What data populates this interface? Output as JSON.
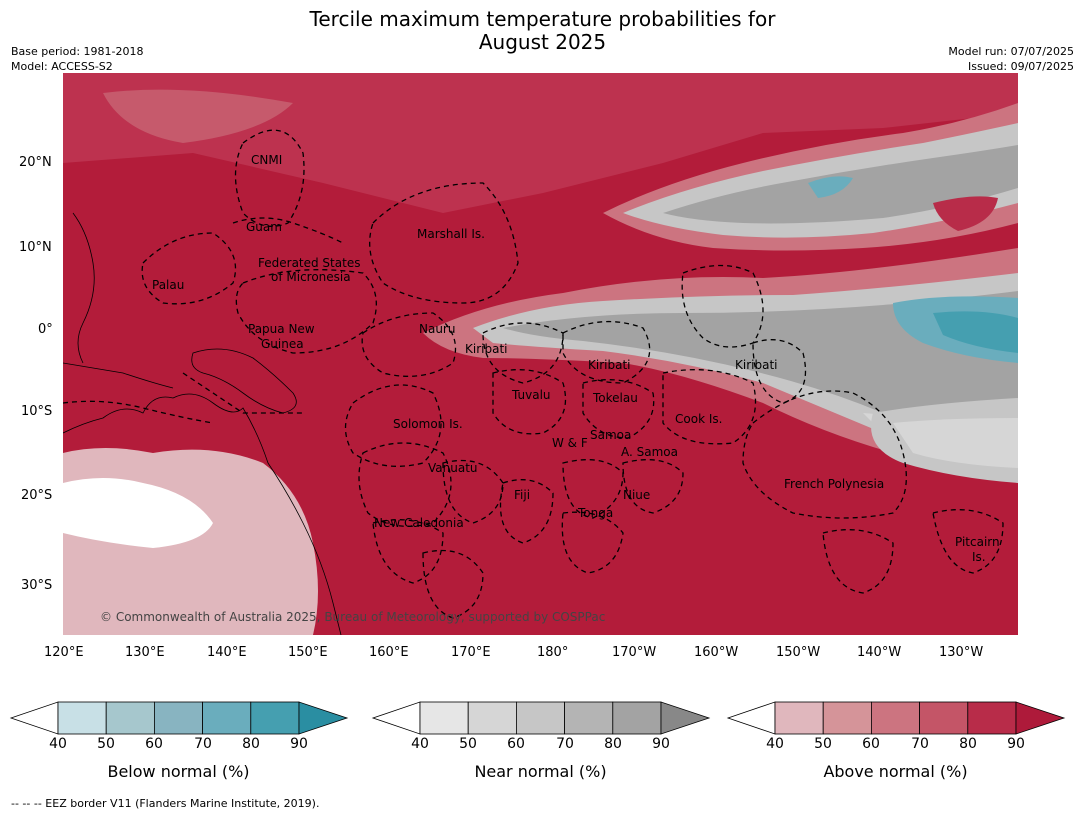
{
  "title_line1": "Tercile maximum temperature probabilities for",
  "title_line2": "August 2025",
  "base_period": "Base period: 1981-2018",
  "model": "Model: ACCESS-S2",
  "model_run": "Model run: 07/07/2025",
  "issued": "Issued: 09/07/2025",
  "copyright": "© Commonwealth of Australia 2025, Bureau of Meteorology, supported by COSPPac",
  "lat_ticks": [
    "20°N",
    "10°N",
    "0°",
    "10°S",
    "20°S",
    "30°S"
  ],
  "lon_ticks": [
    "120°E",
    "130°E",
    "140°E",
    "150°E",
    "160°E",
    "170°E",
    "180°",
    "170°W",
    "160°W",
    "150°W",
    "140°W",
    "130°W"
  ],
  "regions": {
    "cnmi": "CNMI",
    "guam": "Guam",
    "marshall": "Marshall Is.",
    "fsm1": "Federated States",
    "fsm2": "of Micronesia",
    "palau": "Palau",
    "png1": "Papua New",
    "png2": "Guinea",
    "nauru": "Nauru",
    "kiribati_w": "Kiribati",
    "kiribati_c": "Kiribati",
    "kiribati_e": "Kiribati",
    "tuvalu": "Tuvalu",
    "tokelau": "Tokelau",
    "cook": "Cook Is.",
    "solomon": "Solomon Is.",
    "samoa": "Samoa",
    "wf": "W & F",
    "asamoa": "A. Samoa",
    "vanuatu": "Vanuatu",
    "fiji": "Fiji",
    "niue": "Niue",
    "french_poly": "French Polynesia",
    "tonga": "Tonga",
    "new_caledonia": "New Caledonia",
    "pitcairn1": "Pitcairn",
    "pitcairn2": "Is."
  },
  "colorbars": [
    {
      "label": "Below normal (%)",
      "ticks": [
        "40",
        "50",
        "60",
        "70",
        "80",
        "90"
      ],
      "colors": [
        "#ffffff",
        "#c8e0e6",
        "#a6c7cd",
        "#88b4c1",
        "#6aadbd",
        "#459fb0",
        "#2a8ea2"
      ]
    },
    {
      "label": "Near normal (%)",
      "ticks": [
        "40",
        "50",
        "60",
        "70",
        "80",
        "90"
      ],
      "colors": [
        "#ffffff",
        "#e6e6e6",
        "#d6d6d6",
        "#c6c6c6",
        "#b4b4b4",
        "#a3a3a3",
        "#888888"
      ]
    },
    {
      "label": "Above normal (%)",
      "ticks": [
        "40",
        "50",
        "60",
        "70",
        "80",
        "90"
      ],
      "colors": [
        "#ffffff",
        "#e0b7bd",
        "#d59499",
        "#cc7480",
        "#c45567",
        "#b82c49",
        "#ae1a3a"
      ]
    }
  ],
  "footer": "--  --  -- EEZ border V11 (Flanders Marine Institute, 2019)."
}
